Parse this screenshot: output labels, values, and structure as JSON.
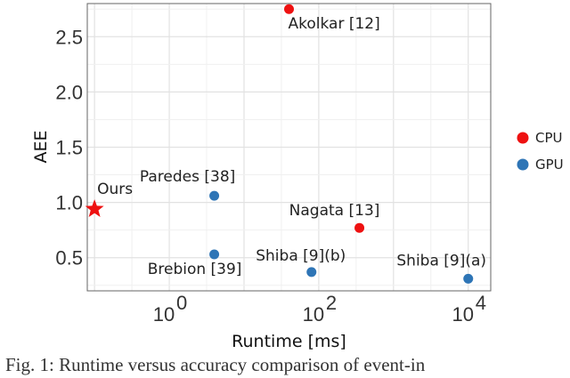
{
  "chart_data": {
    "type": "scatter",
    "xlabel": "Runtime [ms]",
    "ylabel": "AEE",
    "xscale": "log",
    "xlim": [
      0.08,
      20000
    ],
    "ylim": [
      0.2,
      2.8
    ],
    "xticks": [
      {
        "value": 1,
        "base": "10",
        "exp": "0"
      },
      {
        "value": 100,
        "base": "10",
        "exp": "2"
      },
      {
        "value": 10000,
        "base": "10",
        "exp": "4"
      }
    ],
    "yticks": [
      "0.5",
      "1.0",
      "1.5",
      "2.0",
      "2.5"
    ],
    "grid": true,
    "legend_position": "right",
    "series": [
      {
        "name": "CPU",
        "color": "#ee1111"
      },
      {
        "name": "GPU",
        "color": "#2e75b6"
      }
    ],
    "points": [
      {
        "label": "Ours",
        "x": 0.1,
        "y": 0.94,
        "series": "CPU",
        "marker": "star"
      },
      {
        "label": "Akolkar [12]",
        "x": 40,
        "y": 2.75,
        "series": "CPU",
        "marker": "circle"
      },
      {
        "label": "Nagata [13]",
        "x": 350,
        "y": 0.77,
        "series": "CPU",
        "marker": "circle"
      },
      {
        "label": "Paredes [38]",
        "x": 4,
        "y": 1.06,
        "series": "GPU",
        "marker": "circle"
      },
      {
        "label": "Brebion [39]",
        "x": 4,
        "y": 0.53,
        "series": "GPU",
        "marker": "circle"
      },
      {
        "label": "Shiba [9](b)",
        "x": 80,
        "y": 0.37,
        "series": "GPU",
        "marker": "circle"
      },
      {
        "label": "Shiba [9](a)",
        "x": 10000,
        "y": 0.31,
        "series": "GPU",
        "marker": "circle"
      }
    ]
  },
  "caption": "Fig. 1: Runtime versus accuracy comparison of event-in"
}
